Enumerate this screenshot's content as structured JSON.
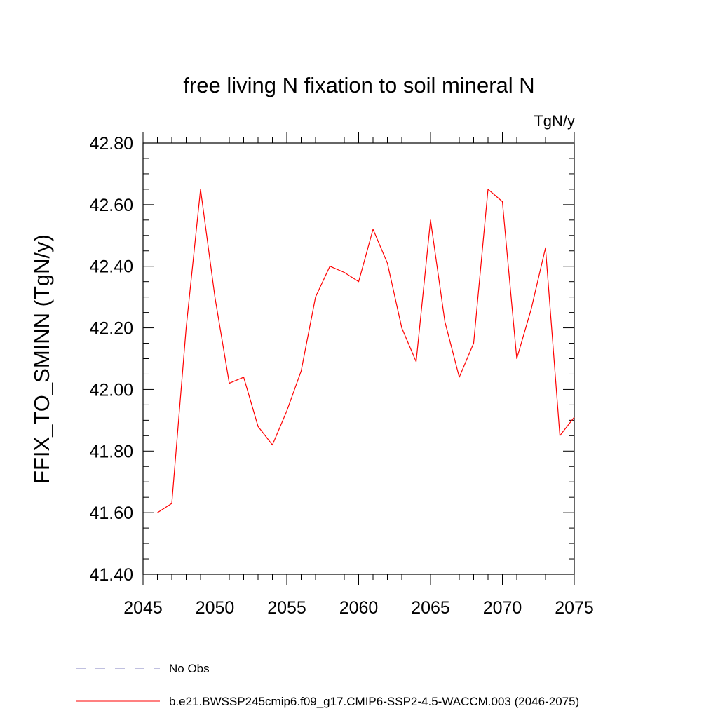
{
  "chart_data": {
    "type": "line",
    "title": "free living N fixation to soil mineral N",
    "units": "TgN/y",
    "ylabel": "FFIX_TO_SMINN  (TgN/y)",
    "xlabel": "",
    "xlim": [
      2045,
      2075
    ],
    "ylim": [
      41.4,
      42.8
    ],
    "x_ticks": [
      2045,
      2050,
      2055,
      2060,
      2065,
      2070,
      2075
    ],
    "x_tick_labels": [
      "2045",
      "2050",
      "2055",
      "2060",
      "2065",
      "2070",
      "2075"
    ],
    "y_ticks": [
      41.4,
      41.6,
      41.8,
      42.0,
      42.2,
      42.4,
      42.6,
      42.8
    ],
    "y_tick_labels": [
      "41.40",
      "41.60",
      "41.80",
      "42.00",
      "42.20",
      "42.40",
      "42.60",
      "42.80"
    ],
    "series": [
      {
        "name": "b.e21.BWSSP245cmip6.f09_g17.CMIP6-SSP2-4.5-WACCM.003 (2046-2075)",
        "color": "#ff0000",
        "x": [
          2046,
          2047,
          2048,
          2049,
          2050,
          2051,
          2052,
          2053,
          2054,
          2055,
          2056,
          2057,
          2058,
          2059,
          2060,
          2061,
          2062,
          2063,
          2064,
          2065,
          2066,
          2067,
          2068,
          2069,
          2070,
          2071,
          2072,
          2073,
          2074,
          2075
        ],
        "values": [
          41.6,
          41.63,
          42.2,
          42.65,
          42.3,
          42.02,
          42.04,
          41.88,
          41.82,
          41.93,
          42.06,
          42.3,
          42.4,
          42.38,
          42.35,
          42.52,
          42.41,
          42.2,
          42.09,
          42.55,
          42.22,
          42.04,
          42.15,
          42.65,
          42.61,
          42.1,
          42.26,
          42.46,
          41.85,
          41.91
        ]
      }
    ],
    "legend": [
      {
        "label": "No Obs",
        "color": "#8080c0",
        "style": "dashed"
      },
      {
        "label": "b.e21.BWSSP245cmip6.f09_g17.CMIP6-SSP2-4.5-WACCM.003 (2046-2075)",
        "color": "#ff0000",
        "style": "solid"
      }
    ]
  }
}
